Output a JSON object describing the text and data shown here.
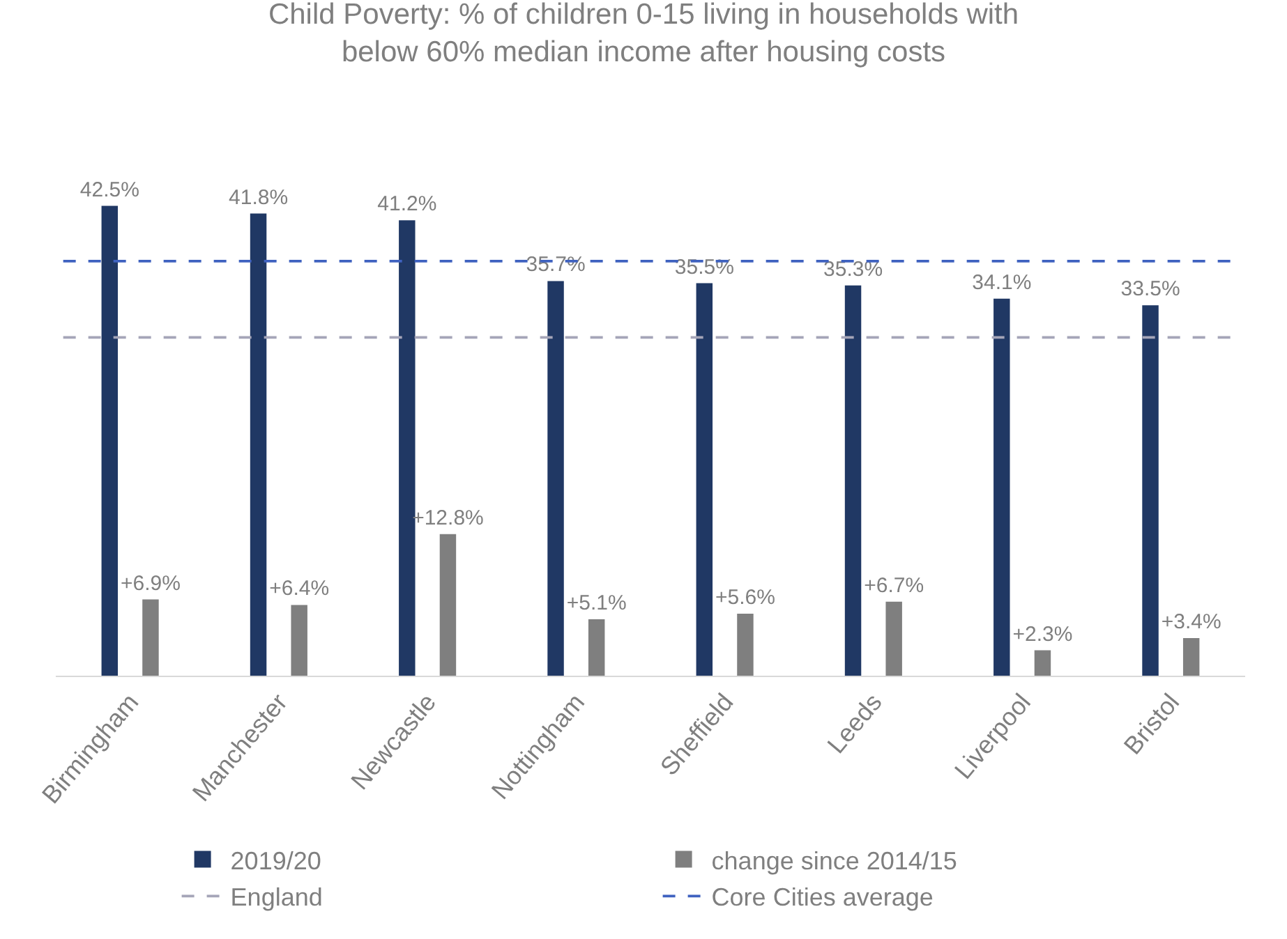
{
  "chart_data": {
    "type": "bar",
    "title": "Child Poverty: % of children 0-15 living in households with\nbelow 60% median income after housing costs",
    "categories": [
      "Birmingham",
      "Manchester",
      "Newcastle",
      "Nottingham",
      "Sheffield",
      "Leeds",
      "Liverpool",
      "Bristol"
    ],
    "series": [
      {
        "name": "2019/20",
        "color": "#203864",
        "values": [
          42.5,
          41.8,
          41.2,
          35.7,
          35.5,
          35.3,
          34.1,
          33.5
        ],
        "value_labels": [
          "42.5%",
          "41.8%",
          "41.2%",
          "35.7%",
          "35.5%",
          "35.3%",
          "34.1%",
          "33.5%"
        ]
      },
      {
        "name": "change since 2014/15",
        "color": "#7f7f7f",
        "values": [
          6.9,
          6.4,
          12.8,
          5.1,
          5.6,
          6.7,
          2.3,
          3.4
        ],
        "value_labels": [
          "+6.9%",
          "+6.4%",
          "+12.8%",
          "+5.1%",
          "+5.6%",
          "+6.7%",
          "+2.3%",
          "+3.4%"
        ]
      }
    ],
    "ref_lines": [
      {
        "axis": "y",
        "value": 30.6,
        "label": "England",
        "color": "#a5a5b8",
        "line_style": "dashed"
      },
      {
        "axis": "y",
        "value": 37.5,
        "label": "Core Cities average",
        "color": "#3f62c0",
        "line_style": "dashed"
      }
    ],
    "tick_labels": "x",
    "legend": "bottom"
  }
}
